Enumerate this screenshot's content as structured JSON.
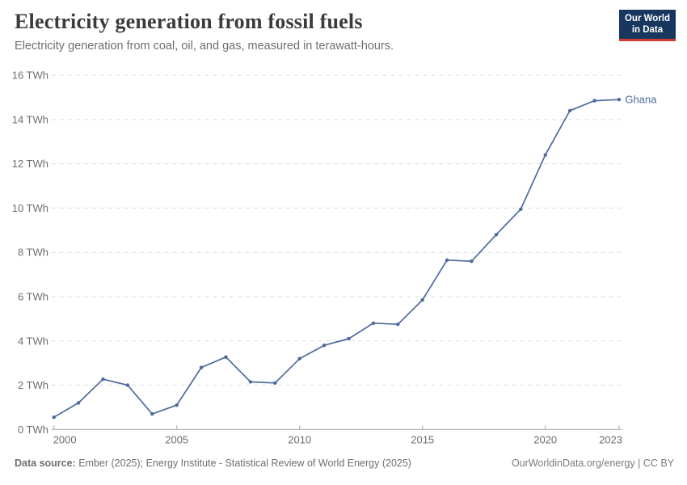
{
  "header": {
    "title": "Electricity generation from fossil fuels",
    "subtitle": "Electricity generation from coal, oil, and gas, measured in terawatt-hours.",
    "logo": {
      "line1": "Our World",
      "line2": "in Data",
      "bg_color": "#18375f",
      "accent_color": "#d23b31"
    }
  },
  "chart_data": {
    "type": "line",
    "title": "Electricity generation from fossil fuels",
    "unit": "TWh",
    "x": [
      2000,
      2001,
      2002,
      2003,
      2004,
      2005,
      2006,
      2007,
      2008,
      2009,
      2010,
      2011,
      2012,
      2013,
      2014,
      2015,
      2016,
      2017,
      2018,
      2019,
      2020,
      2021,
      2022,
      2023
    ],
    "series": [
      {
        "name": "Ghana",
        "color": "#4c6a9c",
        "values": [
          0.55,
          1.2,
          2.27,
          2.0,
          0.7,
          1.1,
          2.8,
          3.27,
          2.15,
          2.1,
          3.2,
          3.8,
          4.1,
          4.8,
          4.75,
          5.85,
          7.65,
          7.6,
          8.8,
          9.95,
          12.4,
          14.4,
          14.85,
          14.9
        ]
      }
    ],
    "xticks": [
      2000,
      2005,
      2010,
      2015,
      2020,
      2023
    ],
    "yticks": [
      0,
      2,
      4,
      6,
      8,
      10,
      12,
      14,
      16
    ],
    "ytick_labels": [
      "0 TWh",
      "2 TWh",
      "4 TWh",
      "6 TWh",
      "8 TWh",
      "10 TWh",
      "12 TWh",
      "14 TWh",
      "16 TWh"
    ],
    "xtick_labels": [
      "2000",
      "2005",
      "2010",
      "2015",
      "2020",
      "2023"
    ],
    "xlim": [
      2000,
      2023
    ],
    "ylim": [
      0,
      16
    ],
    "grid": "horizontal-dashed",
    "legend": "end-of-line-label",
    "colors": {
      "gridline": "#dcdcdc",
      "axis": "#a5a5a5",
      "tick_label": "#6e6e6e"
    }
  },
  "footer": {
    "source_label": "Data source:",
    "source_text": "Ember (2025); Energy Institute - Statistical Review of World Energy (2025)",
    "right_text": "OurWorldinData.org/energy | CC BY"
  }
}
